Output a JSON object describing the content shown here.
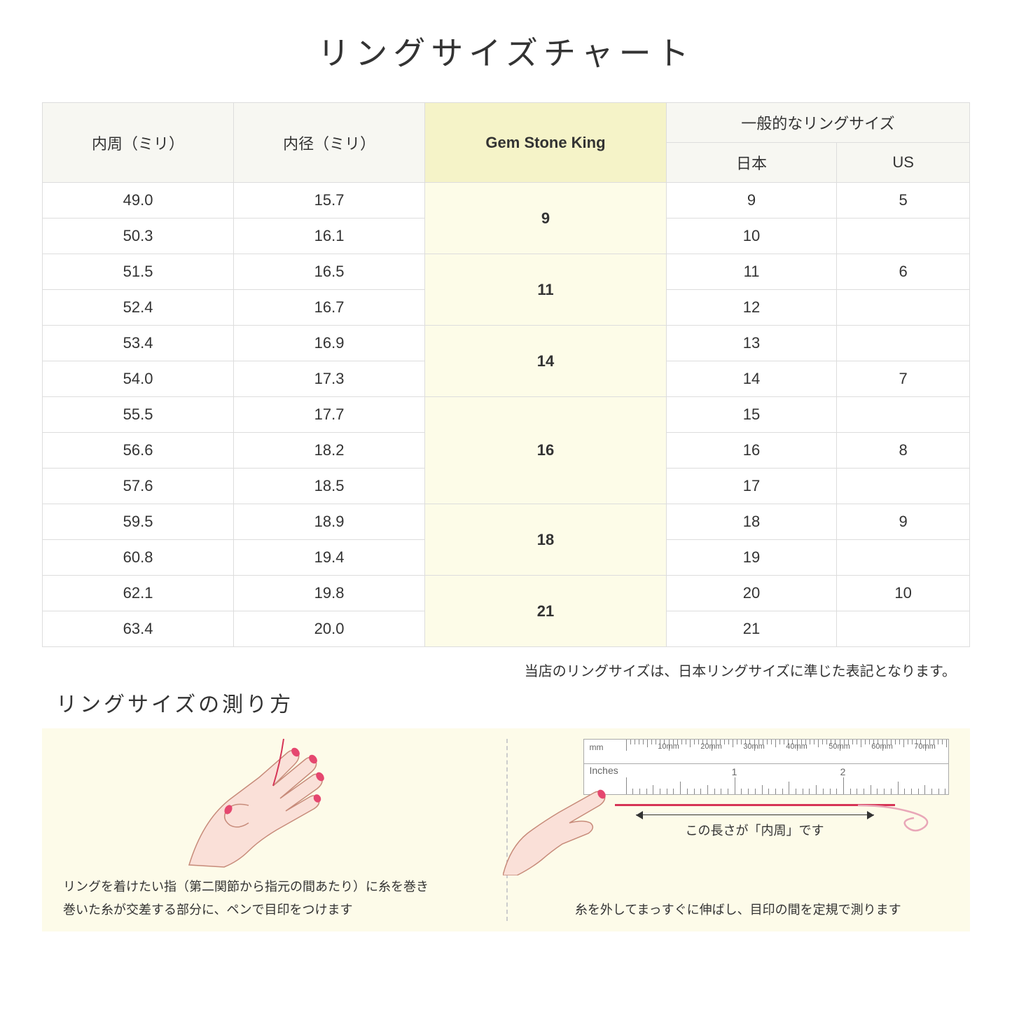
{
  "title": "リングサイズチャート",
  "headers": {
    "circumference": "内周（ミリ）",
    "diameter": "内径（ミリ）",
    "gsk": "Gem Stone King",
    "general": "一般的なリングサイズ",
    "japan": "日本",
    "us": "US"
  },
  "rows": [
    {
      "circ": "49.0",
      "dia": "15.7",
      "jp": "9",
      "us": "5"
    },
    {
      "circ": "50.3",
      "dia": "16.1",
      "jp": "10",
      "us": ""
    },
    {
      "circ": "51.5",
      "dia": "16.5",
      "jp": "11",
      "us": "6"
    },
    {
      "circ": "52.4",
      "dia": "16.7",
      "jp": "12",
      "us": ""
    },
    {
      "circ": "53.4",
      "dia": "16.9",
      "jp": "13",
      "us": ""
    },
    {
      "circ": "54.0",
      "dia": "17.3",
      "jp": "14",
      "us": "7"
    },
    {
      "circ": "55.5",
      "dia": "17.7",
      "jp": "15",
      "us": ""
    },
    {
      "circ": "56.6",
      "dia": "18.2",
      "jp": "16",
      "us": "8"
    },
    {
      "circ": "57.6",
      "dia": "18.5",
      "jp": "17",
      "us": ""
    },
    {
      "circ": "59.5",
      "dia": "18.9",
      "jp": "18",
      "us": "9"
    },
    {
      "circ": "60.8",
      "dia": "19.4",
      "jp": "19",
      "us": ""
    },
    {
      "circ": "62.1",
      "dia": "19.8",
      "jp": "20",
      "us": "10"
    },
    {
      "circ": "63.4",
      "dia": "20.0",
      "jp": "21",
      "us": ""
    }
  ],
  "gsk_groups": [
    {
      "value": "9",
      "span": 2
    },
    {
      "value": "11",
      "span": 2
    },
    {
      "value": "14",
      "span": 2
    },
    {
      "value": "16",
      "span": 3
    },
    {
      "value": "18",
      "span": 2
    },
    {
      "value": "21",
      "span": 2
    }
  ],
  "note": "当店のリングサイズは、日本リングサイズに準じた表記となります。",
  "subtitle": "リングサイズの測り方",
  "instruction_left": "リングを着けたい指（第二関節から指元の間あたり）に糸を巻き\n巻いた糸が交差する部分に、ペンで目印をつけます",
  "instruction_right": "糸を外してまっすぐに伸ばし、目印の間を定規で測ります",
  "measure_label": "この長さが「内周」です",
  "ruler": {
    "mm_label": "mm",
    "in_label": "Inches",
    "mm_marks": [
      "10mm",
      "20mm",
      "30mm",
      "40mm",
      "50mm",
      "60mm",
      "70mm"
    ],
    "in_marks": [
      "1",
      "2"
    ]
  },
  "colors": {
    "header_bg": "#f7f7f2",
    "gsk_header_bg": "#f5f3c8",
    "gsk_cell_bg": "#fdfce8",
    "instruction_bg": "#fdfbe9",
    "hand_fill": "#fae0d8",
    "hand_stroke": "#c78b7a",
    "nail": "#e5476f",
    "thread": "#d63456"
  }
}
